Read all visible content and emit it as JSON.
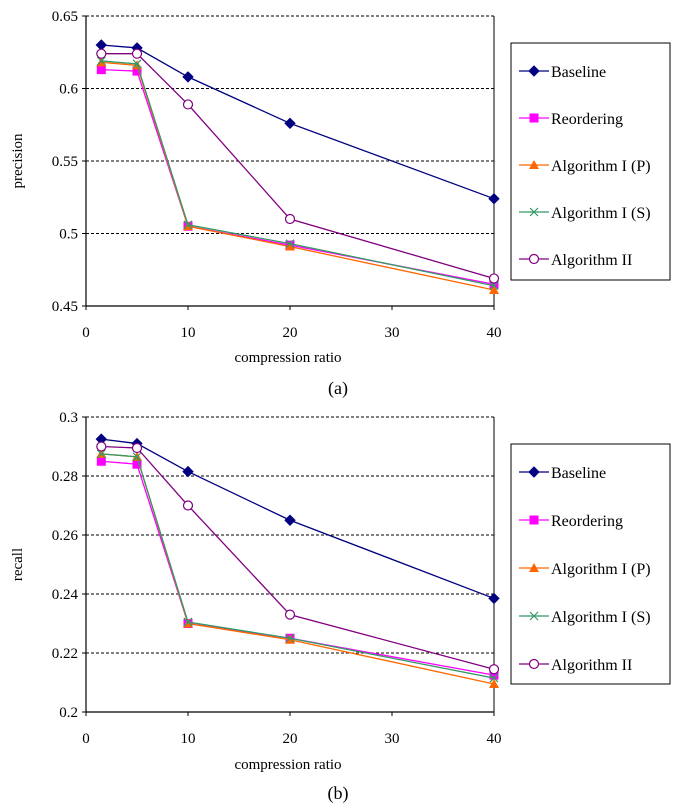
{
  "chart_data": [
    {
      "type": "line",
      "caption": "(a)",
      "xlabel": "compression ratio",
      "ylabel": "precision",
      "x": [
        1.5,
        5,
        10,
        20,
        40
      ],
      "xlim": [
        0,
        40
      ],
      "ylim": [
        0.45,
        0.65
      ],
      "xticks": [
        "0",
        "10",
        "20",
        "30",
        "40"
      ],
      "yticks": [
        "0.45",
        "0.5",
        "0.55",
        "0.6",
        "0.65"
      ],
      "grid": "horizontal dashed",
      "legend_position": "right",
      "series": [
        {
          "name": "Baseline",
          "color": "#000080",
          "marker": "diamond",
          "values": [
            0.63,
            0.628,
            0.608,
            0.576,
            0.524
          ]
        },
        {
          "name": "Reordering",
          "color": "#ff00ff",
          "marker": "square",
          "values": [
            0.613,
            0.612,
            0.505,
            0.492,
            0.465
          ]
        },
        {
          "name": "Algorithm I (P)",
          "color": "#ff6600",
          "marker": "triangle",
          "values": [
            0.618,
            0.616,
            0.505,
            0.491,
            0.461
          ]
        },
        {
          "name": "Algorithm I (S)",
          "color": "#339966",
          "marker": "x",
          "values": [
            0.619,
            0.617,
            0.506,
            0.493,
            0.464
          ]
        },
        {
          "name": "Algorithm II",
          "color": "#800080",
          "marker": "circle",
          "values": [
            0.624,
            0.624,
            0.589,
            0.51,
            0.469
          ]
        }
      ]
    },
    {
      "type": "line",
      "caption": "(b)",
      "xlabel": "compression ratio",
      "ylabel": "recall",
      "x": [
        1.5,
        5,
        10,
        20,
        40
      ],
      "xlim": [
        0,
        40
      ],
      "ylim": [
        0.2,
        0.3
      ],
      "xticks": [
        "0",
        "10",
        "20",
        "30",
        "40"
      ],
      "yticks": [
        "0.2",
        "0.22",
        "0.24",
        "0.26",
        "0.28",
        "0.3"
      ],
      "grid": "horizontal dashed",
      "legend_position": "right",
      "series": [
        {
          "name": "Baseline",
          "color": "#000080",
          "marker": "diamond",
          "values": [
            0.2925,
            0.291,
            0.2815,
            0.265,
            0.2385
          ]
        },
        {
          "name": "Reordering",
          "color": "#ff00ff",
          "marker": "square",
          "values": [
            0.285,
            0.284,
            0.23,
            0.225,
            0.2125
          ]
        },
        {
          "name": "Algorithm I (P)",
          "color": "#ff6600",
          "marker": "triangle",
          "values": [
            0.2875,
            0.2865,
            0.23,
            0.2245,
            0.2095
          ]
        },
        {
          "name": "Algorithm I (S)",
          "color": "#339966",
          "marker": "x",
          "values": [
            0.2875,
            0.2865,
            0.2305,
            0.225,
            0.2115
          ]
        },
        {
          "name": "Algorithm II",
          "color": "#800080",
          "marker": "circle",
          "values": [
            0.29,
            0.2895,
            0.27,
            0.233,
            0.2145
          ]
        }
      ]
    }
  ]
}
